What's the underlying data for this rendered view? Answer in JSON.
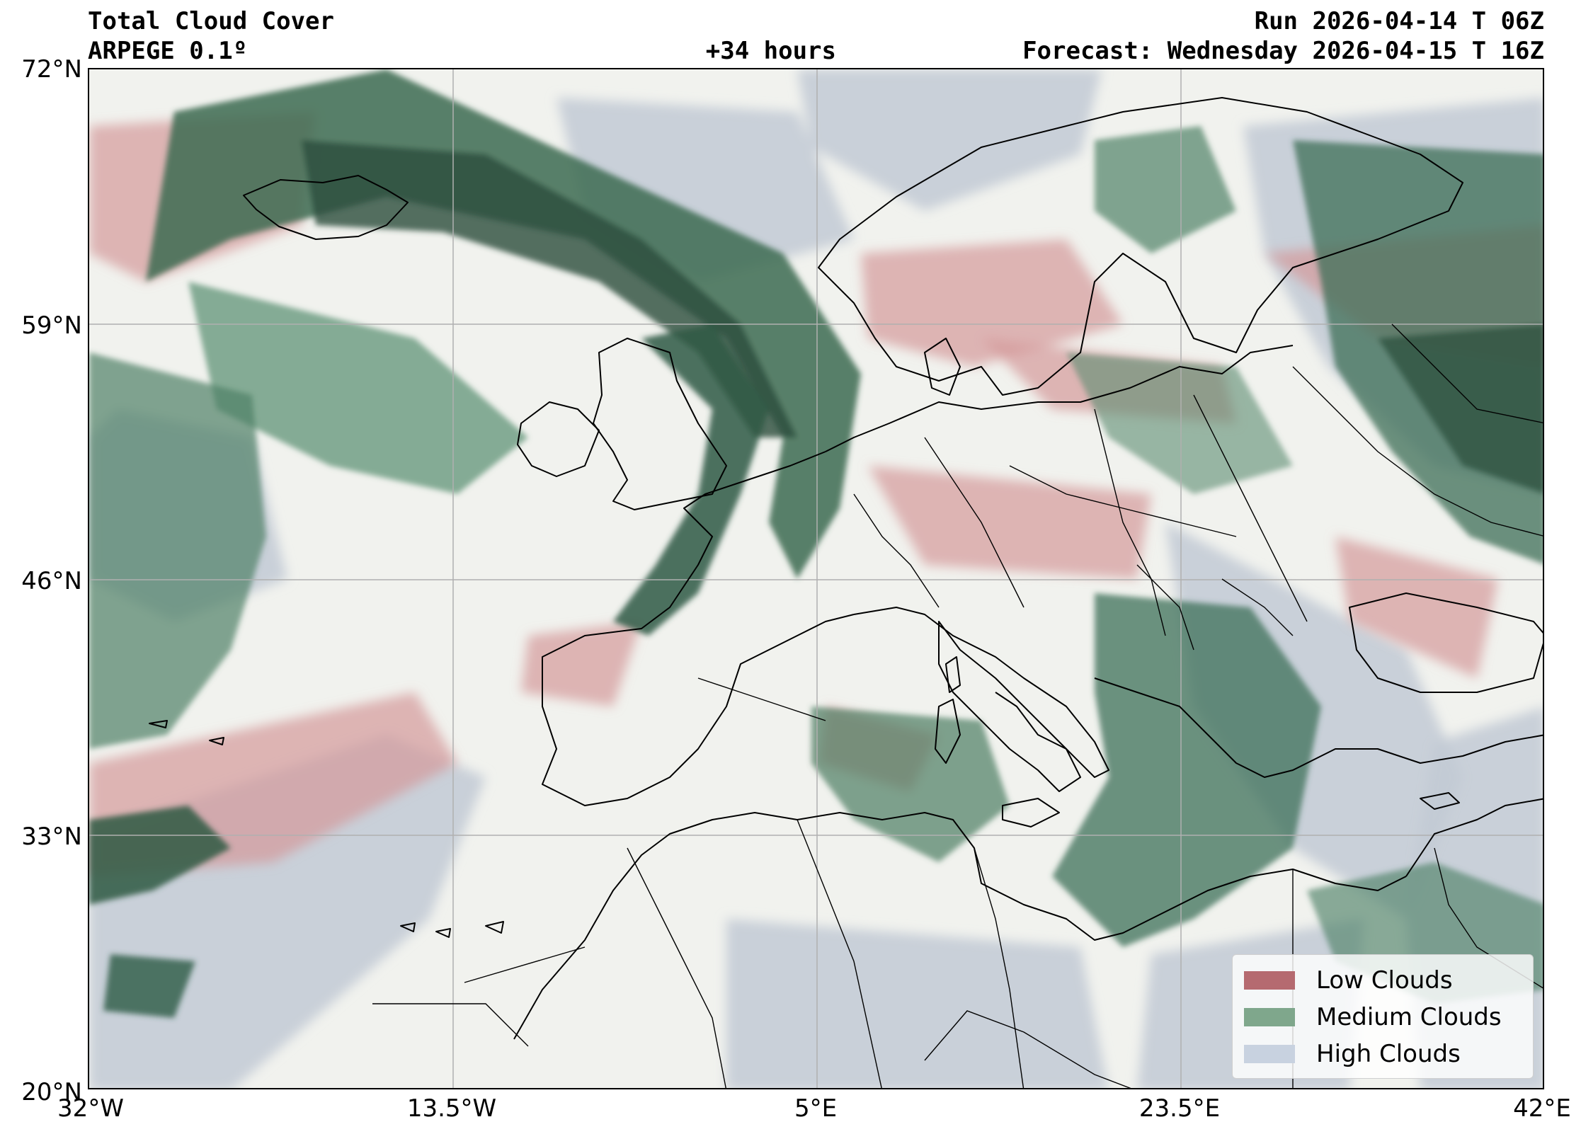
{
  "header": {
    "title": "Total Cloud Cover",
    "model": "ARPEGE 0.1º",
    "lead": "+34 hours",
    "run": "Run 2026-04-14 T 06Z",
    "forecast": "Forecast: Wednesday 2026-04-15 T 16Z"
  },
  "axes": {
    "lat_labels": [
      "72°N",
      "59°N",
      "46°N",
      "33°N",
      "20°N"
    ],
    "lon_labels": [
      "32°W",
      "13.5°W",
      "5°E",
      "23.5°E",
      "42°E"
    ]
  },
  "legend": {
    "items": [
      {
        "label": "Low Clouds",
        "color": "#b56a70"
      },
      {
        "label": "Medium Clouds",
        "color": "#7fa78c"
      },
      {
        "label": "High Clouds",
        "color": "#c8d2e0"
      }
    ]
  },
  "colors": {
    "land_ocean_clear": "#f1f2ee",
    "low_cloud": "#c98a8c",
    "medium_cloud": "#2f5f47",
    "high_cloud": "#c5ccd6",
    "gridline": "#b0b0b0",
    "coastline": "#000000"
  }
}
